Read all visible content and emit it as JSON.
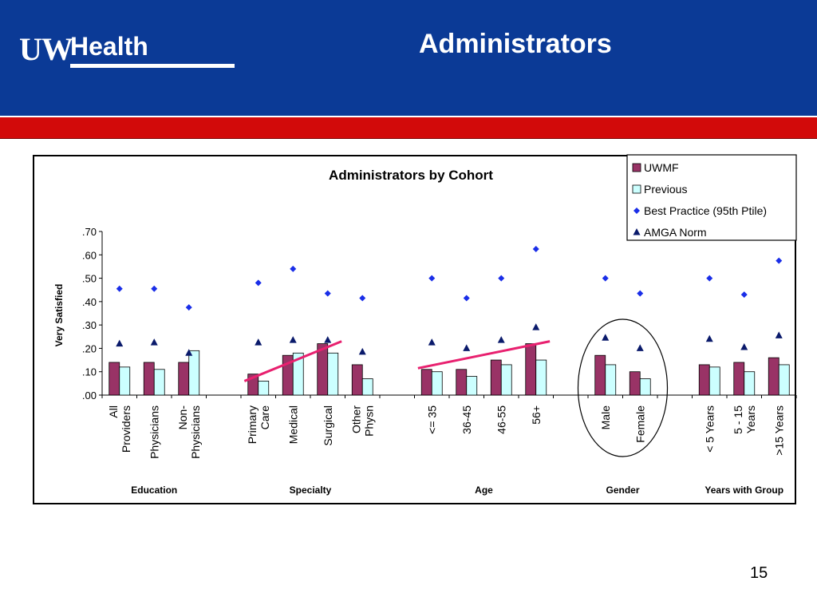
{
  "slide": {
    "title": "Administrators",
    "page_number": "15",
    "logo_part1": "UW",
    "logo_part2": "Health",
    "header_color": "#0b3a96",
    "band_color": "#d20a0a"
  },
  "chart_data": {
    "type": "bar",
    "title": "Administrators by Cohort",
    "ylabel": "Very Satisfied",
    "xlabel": "",
    "ylim": [
      0,
      0.7
    ],
    "yticks": [
      ".00",
      ".10",
      ".20",
      ".30",
      ".40",
      ".50",
      ".60",
      ".70"
    ],
    "grid": false,
    "legend_position": "top-right",
    "categories": [
      [
        "All",
        "Providers"
      ],
      [
        "Physicians"
      ],
      [
        "Non-",
        "Physicians"
      ],
      [
        "Primary",
        "Care"
      ],
      [
        "Medical"
      ],
      [
        "Surgical"
      ],
      [
        "Other",
        "Physn"
      ],
      [
        "<= 35"
      ],
      [
        "36-45"
      ],
      [
        "46-55"
      ],
      [
        "56+"
      ],
      [
        "Male"
      ],
      [
        "Female"
      ],
      [
        "< 5 Years"
      ],
      [
        "5 - 15",
        "Years"
      ],
      [
        ">15 Years"
      ]
    ],
    "groups": [
      {
        "label": "Education",
        "count": 3
      },
      {
        "label": "Specialty",
        "count": 4
      },
      {
        "label": "Age",
        "count": 4
      },
      {
        "label": "Gender",
        "count": 2
      },
      {
        "label": "Years with Group",
        "count": 3
      }
    ],
    "series": [
      {
        "name": "UWMF",
        "kind": "bar",
        "color": "#993366",
        "values": [
          0.14,
          0.14,
          0.14,
          0.09,
          0.17,
          0.22,
          0.13,
          0.11,
          0.11,
          0.15,
          0.22,
          0.17,
          0.1,
          0.13,
          0.14,
          0.16
        ]
      },
      {
        "name": "Previous",
        "kind": "bar",
        "color": "#ccffff",
        "values": [
          0.12,
          0.11,
          0.19,
          0.06,
          0.18,
          0.18,
          0.07,
          0.1,
          0.08,
          0.13,
          0.15,
          0.13,
          0.07,
          0.12,
          0.1,
          0.13
        ]
      },
      {
        "name": "Best Practice (95th Ptile)",
        "kind": "diamond",
        "color": "#1a2ee8",
        "values": [
          0.455,
          0.455,
          0.375,
          0.48,
          0.54,
          0.435,
          0.415,
          0.5,
          0.415,
          0.5,
          0.625,
          0.5,
          0.435,
          0.5,
          0.43,
          0.575
        ]
      },
      {
        "name": "AMGA Norm",
        "kind": "triangle",
        "color": "#0a1a6b",
        "values": [
          0.22,
          0.225,
          0.18,
          0.225,
          0.235,
          0.235,
          0.185,
          0.225,
          0.2,
          0.235,
          0.29,
          0.245,
          0.2,
          0.24,
          0.205,
          0.255
        ]
      }
    ],
    "annotations": {
      "trend_lines": [
        {
          "from_category": 3,
          "to_category": 5,
          "y_start": 0.06,
          "y_end": 0.23,
          "color": "#e8206f"
        },
        {
          "from_category": 7,
          "to_category": 10,
          "y_start": 0.115,
          "y_end": 0.23,
          "color": "#e8206f"
        }
      ],
      "highlight_ellipse": {
        "group": "Gender"
      }
    }
  }
}
